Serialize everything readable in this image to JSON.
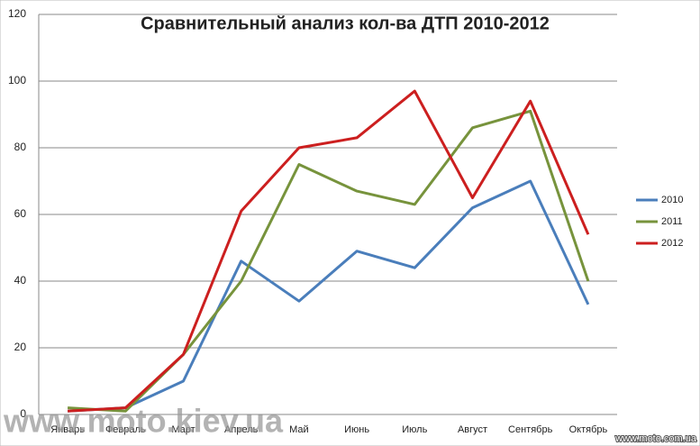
{
  "chart_data": {
    "type": "line",
    "title": "Сравнительный анализ кол-ва ДТП 2010-2012",
    "categories": [
      "Январь",
      "Февраль",
      "Март",
      "Апрель",
      "Май",
      "Июнь",
      "Июль",
      "Август",
      "Сентябрь",
      "Октябрь"
    ],
    "series": [
      {
        "name": "2010",
        "color": "#4a7ebb",
        "values": [
          1,
          2,
          10,
          46,
          34,
          49,
          44,
          62,
          70,
          33
        ]
      },
      {
        "name": "2011",
        "color": "#77933c",
        "values": [
          2,
          1,
          18,
          40,
          75,
          67,
          63,
          86,
          91,
          40
        ]
      },
      {
        "name": "2012",
        "color": "#cc1f1f",
        "values": [
          1,
          2,
          18,
          61,
          80,
          83,
          97,
          65,
          94,
          54
        ]
      }
    ],
    "ylim": [
      0,
      120
    ],
    "yticks": [
      0,
      20,
      40,
      60,
      80,
      100,
      120
    ],
    "grid": true,
    "legend": "right"
  },
  "watermarks": [
    "www.moto.kiev.ua",
    "www.moto.com.ua"
  ]
}
